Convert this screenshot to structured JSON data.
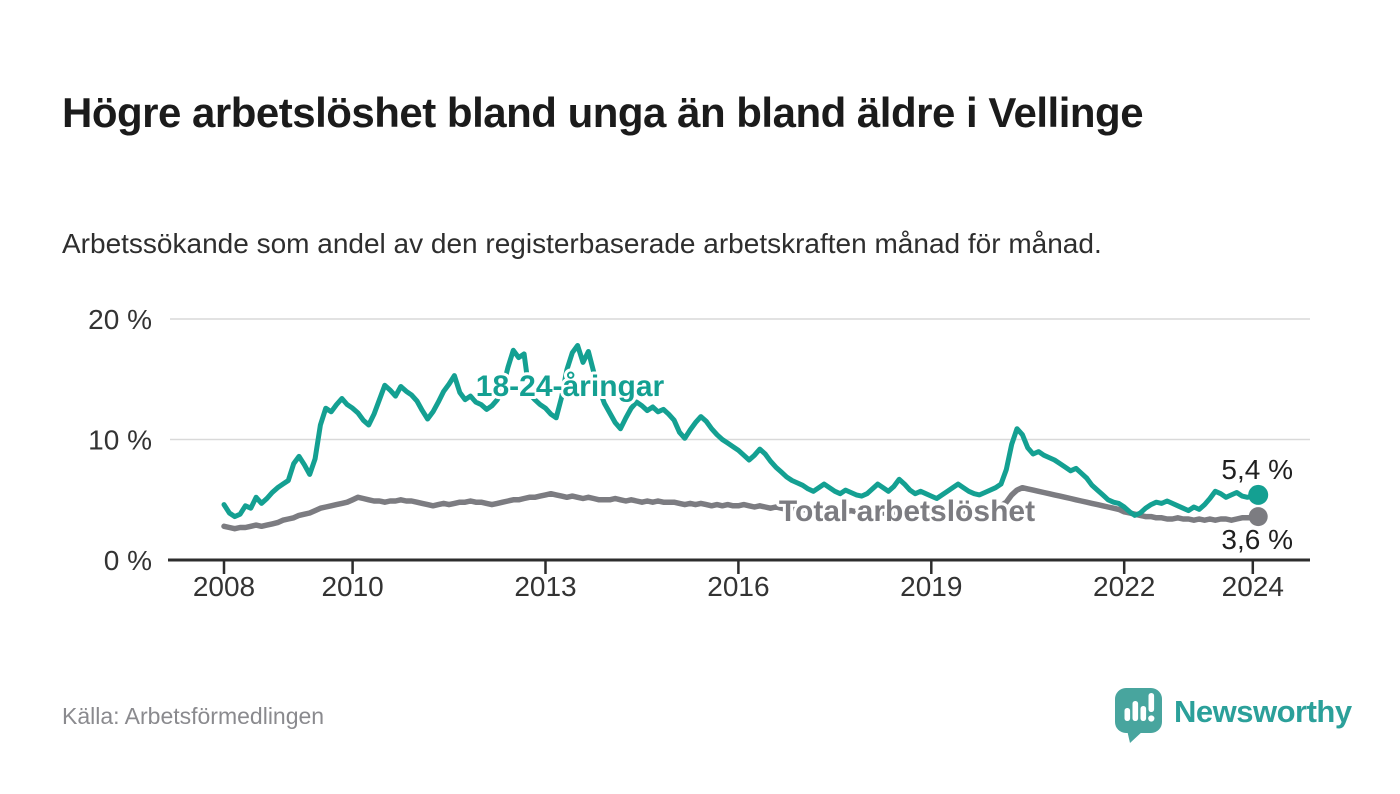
{
  "chart": {
    "title": "Högre arbetslöshet bland unga än bland äldre i Vellinge",
    "subtitle": "Arbetssökande som andel av den registerbaserade arbetskraften månad för månad.",
    "source": "Källa: Arbetsförmedlingen"
  },
  "branding": {
    "logo_text": "Newsworthy",
    "logo_icon": "newsworthy-speech-bubble-bar-chart-icon",
    "brand_color": "#2ba09a",
    "bubble_color": "#48a59e"
  },
  "chart_data": {
    "type": "line",
    "title": "Högre arbetslöshet bland unga än bland äldre i Vellinge",
    "subtitle": "Arbetssökande som andel av den registerbaserade arbetskraften månad för månad.",
    "source": "Källa: Arbetsförmedlingen",
    "frequency": "monthly",
    "x_start": "2008-01",
    "x_end": "2024-02",
    "ylim": [
      0,
      20
    ],
    "grid": "horizontal",
    "legend_position": "inline-labels",
    "yticks": [
      {
        "value": 0,
        "label": "0 %"
      },
      {
        "value": 10,
        "label": "10 %"
      },
      {
        "value": 20,
        "label": "20 %"
      }
    ],
    "xticks": [
      2008,
      2010,
      2013,
      2016,
      2019,
      2022,
      2024
    ],
    "series": [
      {
        "name": "18-24-åringar",
        "color": "#14a092",
        "end_label": "5,4 %",
        "end_value": 5.4,
        "values": [
          4.6,
          3.9,
          3.6,
          3.8,
          4.5,
          4.3,
          5.2,
          4.7,
          5.1,
          5.6,
          6.0,
          6.3,
          6.6,
          8.0,
          8.6,
          7.9,
          7.1,
          8.4,
          11.2,
          12.6,
          12.3,
          12.9,
          13.4,
          12.9,
          12.6,
          12.2,
          11.6,
          11.2,
          12.1,
          13.3,
          14.5,
          14.1,
          13.6,
          14.4,
          14.0,
          13.7,
          13.2,
          12.4,
          11.7,
          12.3,
          13.1,
          14.0,
          14.6,
          15.3,
          13.9,
          13.3,
          13.6,
          13.1,
          12.9,
          12.5,
          12.8,
          13.3,
          14.2,
          16.0,
          17.4,
          16.8,
          17.1,
          13.8,
          13.3,
          12.9,
          12.6,
          12.1,
          11.8,
          13.5,
          15.8,
          17.2,
          17.8,
          16.4,
          17.3,
          15.6,
          14.2,
          13.0,
          12.2,
          11.4,
          10.9,
          11.8,
          12.6,
          13.1,
          12.8,
          12.4,
          12.7,
          12.3,
          12.5,
          12.1,
          11.6,
          10.6,
          10.1,
          10.8,
          11.4,
          11.9,
          11.5,
          10.9,
          10.4,
          10.0,
          9.7,
          9.4,
          9.1,
          8.7,
          8.3,
          8.7,
          9.2,
          8.8,
          8.2,
          7.7,
          7.3,
          6.9,
          6.6,
          6.4,
          6.2,
          5.9,
          5.7,
          6.0,
          6.3,
          6.0,
          5.7,
          5.5,
          5.8,
          5.6,
          5.4,
          5.3,
          5.5,
          5.9,
          6.3,
          6.0,
          5.7,
          6.1,
          6.7,
          6.3,
          5.8,
          5.5,
          5.7,
          5.5,
          5.3,
          5.1,
          5.4,
          5.7,
          6.0,
          6.3,
          6.0,
          5.7,
          5.5,
          5.4,
          5.6,
          5.8,
          6.0,
          6.3,
          7.5,
          9.6,
          10.9,
          10.4,
          9.3,
          8.8,
          9.0,
          8.7,
          8.5,
          8.3,
          8.0,
          7.7,
          7.4,
          7.6,
          7.2,
          6.8,
          6.2,
          5.8,
          5.4,
          5.0,
          4.8,
          4.7,
          4.4,
          4.0,
          3.7,
          3.9,
          4.3,
          4.6,
          4.8,
          4.7,
          4.9,
          4.7,
          4.5,
          4.3,
          4.1,
          4.4,
          4.2,
          4.6,
          5.1,
          5.7,
          5.5,
          5.2,
          5.4,
          5.6,
          5.3,
          5.2,
          5.3,
          5.4
        ]
      },
      {
        "name": "Total arbetslöshet",
        "color": "#7c7c81",
        "end_label": "3,6 %",
        "end_value": 3.6,
        "values": [
          2.8,
          2.7,
          2.6,
          2.7,
          2.7,
          2.8,
          2.9,
          2.8,
          2.9,
          3.0,
          3.1,
          3.3,
          3.4,
          3.5,
          3.7,
          3.8,
          3.9,
          4.1,
          4.3,
          4.4,
          4.5,
          4.6,
          4.7,
          4.8,
          5.0,
          5.2,
          5.1,
          5.0,
          4.9,
          4.9,
          4.8,
          4.9,
          4.9,
          5.0,
          4.9,
          4.9,
          4.8,
          4.7,
          4.6,
          4.5,
          4.6,
          4.7,
          4.6,
          4.7,
          4.8,
          4.8,
          4.9,
          4.8,
          4.8,
          4.7,
          4.6,
          4.7,
          4.8,
          4.9,
          5.0,
          5.0,
          5.1,
          5.2,
          5.2,
          5.3,
          5.4,
          5.5,
          5.4,
          5.3,
          5.2,
          5.3,
          5.2,
          5.1,
          5.2,
          5.1,
          5.0,
          5.0,
          5.0,
          5.1,
          5.0,
          4.9,
          5.0,
          4.9,
          4.8,
          4.9,
          4.8,
          4.9,
          4.8,
          4.8,
          4.8,
          4.7,
          4.6,
          4.7,
          4.6,
          4.7,
          4.6,
          4.5,
          4.6,
          4.5,
          4.6,
          4.5,
          4.5,
          4.6,
          4.5,
          4.4,
          4.5,
          4.4,
          4.3,
          4.4,
          4.3,
          4.2,
          4.3,
          4.2,
          4.2,
          4.1,
          4.2,
          4.1,
          4.0,
          4.1,
          4.0,
          4.1,
          4.0,
          4.1,
          4.0,
          4.0,
          4.0,
          3.9,
          4.0,
          3.9,
          3.8,
          3.9,
          3.8,
          3.9,
          3.9,
          3.8,
          3.9,
          3.8,
          3.9,
          3.9,
          4.0,
          3.9,
          4.0,
          4.0,
          4.1,
          4.0,
          4.1,
          4.1,
          4.2,
          4.3,
          4.4,
          4.5,
          4.8,
          5.4,
          5.8,
          6.0,
          5.9,
          5.8,
          5.7,
          5.6,
          5.5,
          5.4,
          5.3,
          5.2,
          5.1,
          5.0,
          4.9,
          4.8,
          4.7,
          4.6,
          4.5,
          4.4,
          4.3,
          4.2,
          4.0,
          3.9,
          3.8,
          3.7,
          3.6,
          3.6,
          3.5,
          3.5,
          3.4,
          3.4,
          3.5,
          3.4,
          3.4,
          3.3,
          3.4,
          3.3,
          3.4,
          3.3,
          3.4,
          3.4,
          3.3,
          3.4,
          3.5,
          3.5,
          3.5,
          3.6
        ]
      }
    ]
  }
}
